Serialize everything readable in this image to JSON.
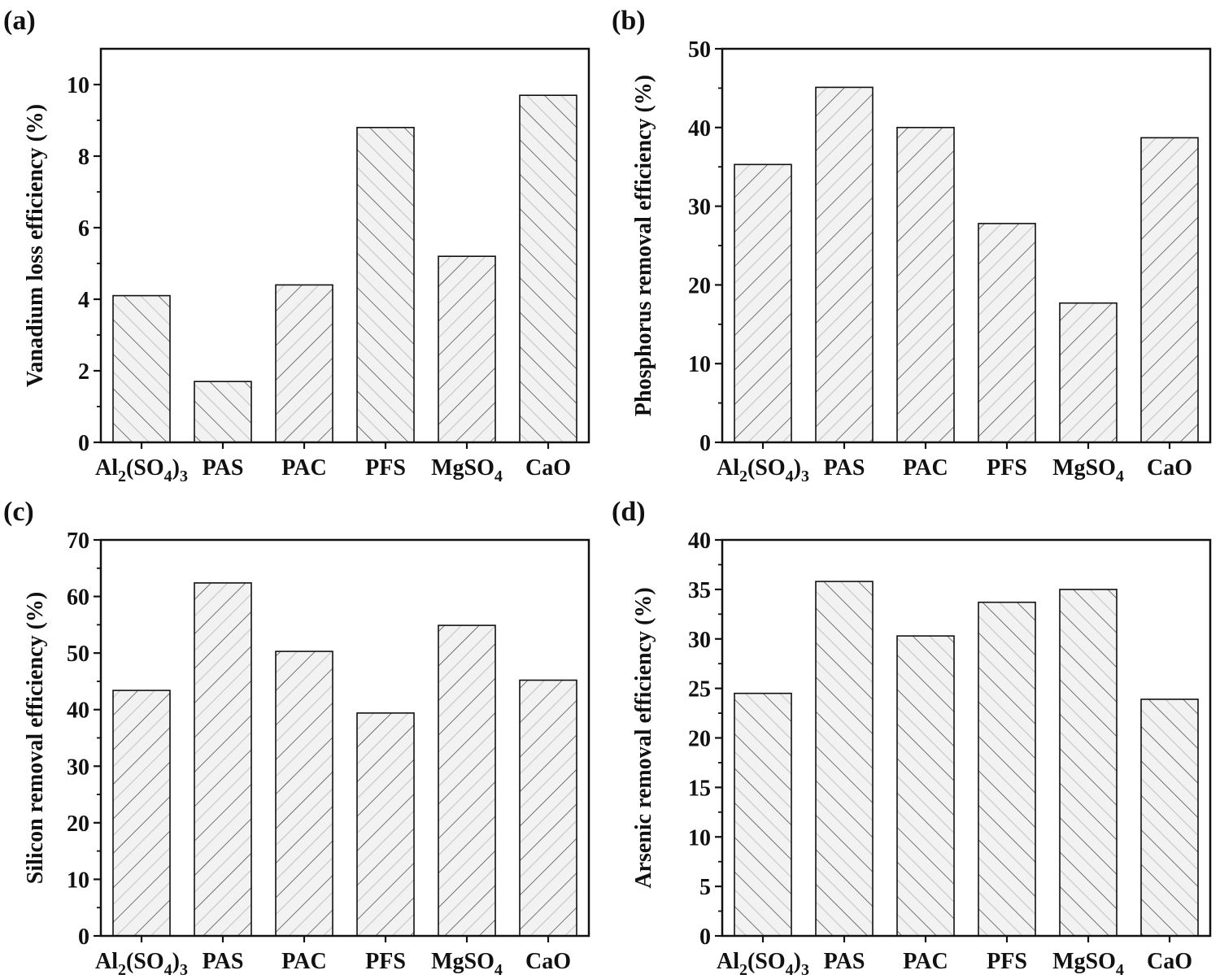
{
  "chart_data": [
    {
      "type": "bar",
      "panel": "(a)",
      "ylabel": "Vanadium loss efficiency (%)",
      "categories": [
        {
          "main": "Al",
          "sub": "2",
          "mid": "(SO",
          "sub2": "4",
          "end": ")",
          "sub3": "3"
        },
        {
          "main": "PAS"
        },
        {
          "main": "PAC"
        },
        {
          "main": "PFS"
        },
        {
          "main": "MgSO",
          "sub": "4"
        },
        {
          "main": "CaO"
        }
      ],
      "values": [
        4.1,
        1.7,
        4.4,
        8.8,
        5.2,
        9.7
      ],
      "ylim": [
        0,
        11
      ],
      "yticks": [
        "0",
        "2",
        "4",
        "6",
        "8",
        "10"
      ],
      "hatch": [
        "up",
        "up",
        "down",
        "up",
        "down",
        "up"
      ]
    },
    {
      "type": "bar",
      "panel": "(b)",
      "ylabel": "Phosphorus removal efficiency (%)",
      "categories": [
        {
          "main": "Al",
          "sub": "2",
          "mid": "(SO",
          "sub2": "4",
          "end": ")",
          "sub3": "3"
        },
        {
          "main": "PAS"
        },
        {
          "main": "PAC"
        },
        {
          "main": "PFS"
        },
        {
          "main": "MgSO",
          "sub": "4"
        },
        {
          "main": "CaO"
        }
      ],
      "values": [
        35.3,
        45.1,
        40.0,
        27.8,
        17.7,
        38.7
      ],
      "ylim": [
        0,
        50
      ],
      "yticks": [
        "0",
        "10",
        "20",
        "30",
        "40",
        "50"
      ],
      "hatch": [
        "down",
        "down",
        "down",
        "down",
        "down",
        "down"
      ]
    },
    {
      "type": "bar",
      "panel": "(c)",
      "ylabel": "Silicon removal efficiency (%)",
      "categories": [
        {
          "main": "Al",
          "sub": "2",
          "mid": "(SO",
          "sub2": "4",
          "end": ")",
          "sub3": "3"
        },
        {
          "main": "PAS"
        },
        {
          "main": "PAC"
        },
        {
          "main": "PFS"
        },
        {
          "main": "MgSO",
          "sub": "4"
        },
        {
          "main": "CaO"
        }
      ],
      "values": [
        43.4,
        62.4,
        50.3,
        39.4,
        54.9,
        45.2
      ],
      "ylim": [
        0,
        70
      ],
      "yticks": [
        "0",
        "10",
        "20",
        "30",
        "40",
        "50",
        "60",
        "70"
      ],
      "hatch": [
        "down",
        "down",
        "down",
        "down",
        "down",
        "down"
      ]
    },
    {
      "type": "bar",
      "panel": "(d)",
      "ylabel": "Arsenic removal efficiency (%)",
      "categories": [
        {
          "main": "Al",
          "sub": "2",
          "mid": "(SO",
          "sub2": "4",
          "end": ")",
          "sub3": "3"
        },
        {
          "main": "PAS"
        },
        {
          "main": "PAC"
        },
        {
          "main": "PFS"
        },
        {
          "main": "MgSO",
          "sub": "4"
        },
        {
          "main": "CaO"
        }
      ],
      "values": [
        24.5,
        35.8,
        30.3,
        33.7,
        35.0,
        23.9
      ],
      "ylim": [
        0,
        40
      ],
      "yticks": [
        "0",
        "5",
        "10",
        "15",
        "20",
        "25",
        "30",
        "35",
        "40"
      ],
      "hatch": [
        "up",
        "up",
        "up",
        "up",
        "up",
        "up"
      ]
    }
  ]
}
